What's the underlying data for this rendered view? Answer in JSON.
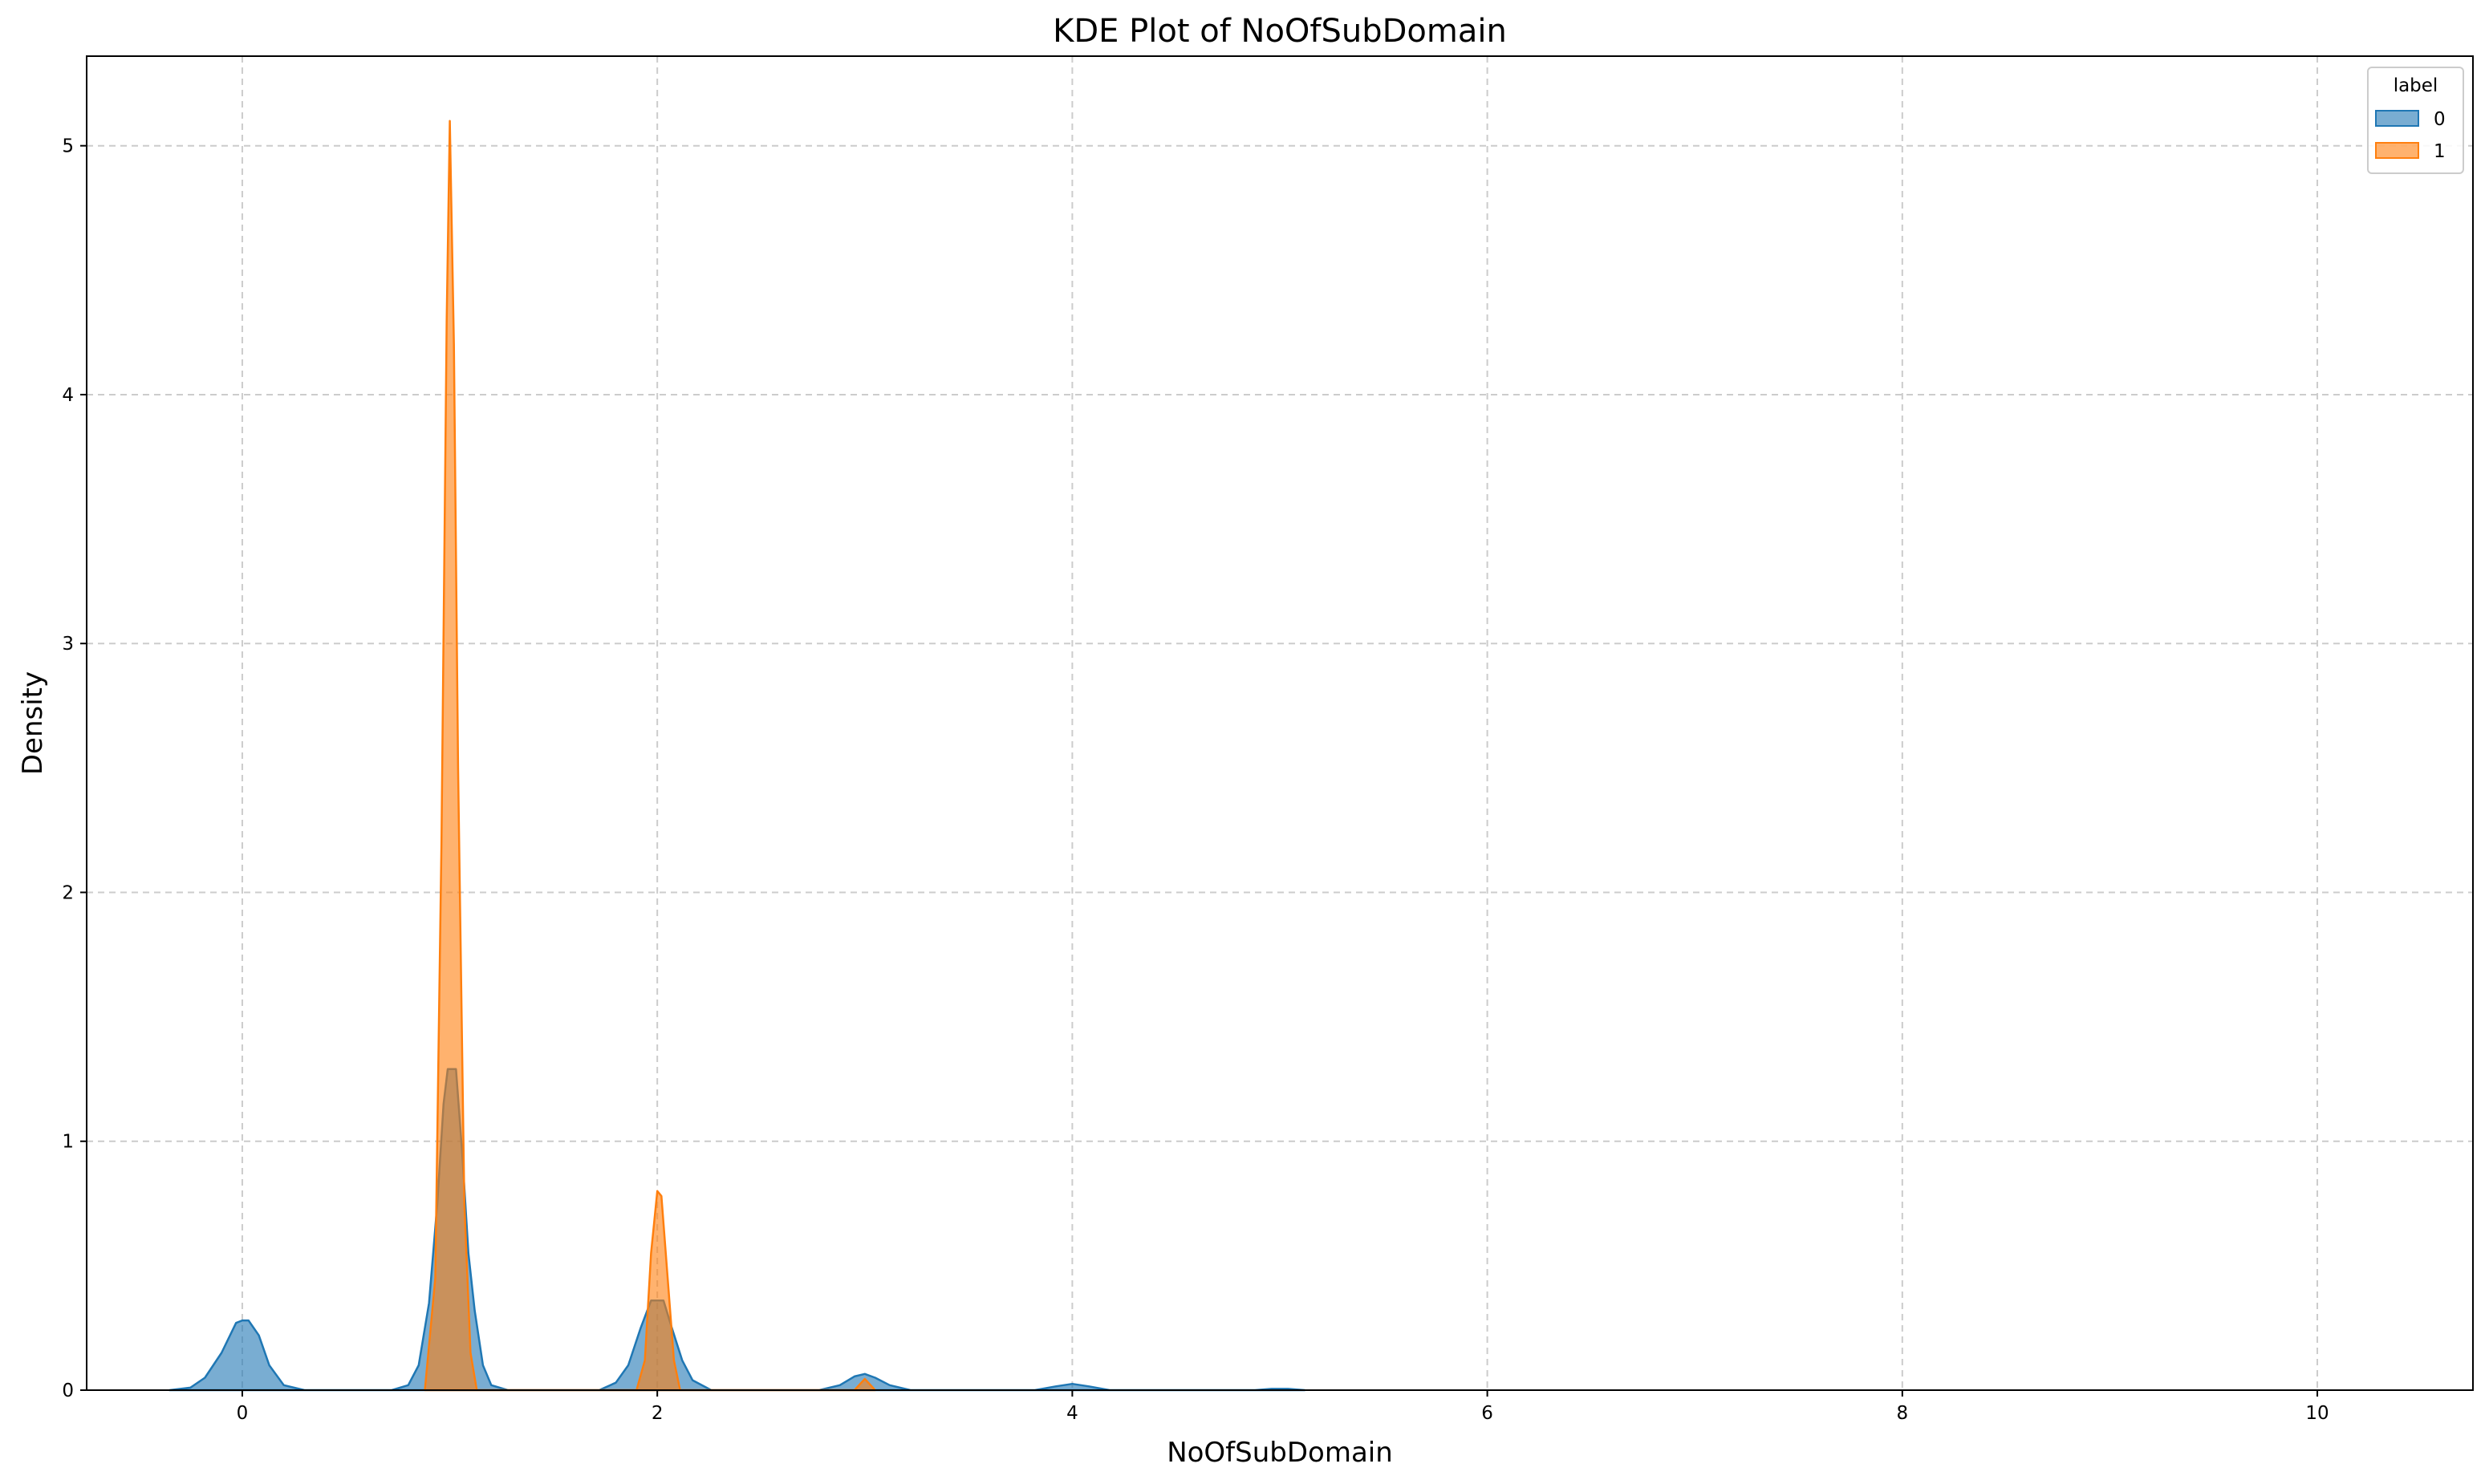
{
  "chart_data": {
    "type": "area",
    "title": "KDE Plot of NoOfSubDomain",
    "xlabel": "NoOfSubDomain",
    "ylabel": "Density",
    "xlim": [
      -0.75,
      10.75
    ],
    "ylim": [
      0,
      5.36
    ],
    "x_ticks": [
      0,
      2,
      4,
      6,
      8,
      10
    ],
    "y_ticks": [
      0,
      1,
      2,
      3,
      4,
      5
    ],
    "grid": true,
    "legend": {
      "title": "label",
      "placement": "top-right"
    },
    "series": [
      {
        "name": "0",
        "color": "#1f77b4",
        "points": [
          [
            -0.35,
            0
          ],
          [
            -0.25,
            0.01
          ],
          [
            -0.18,
            0.05
          ],
          [
            -0.1,
            0.15
          ],
          [
            -0.03,
            0.27
          ],
          [
            0,
            0.28
          ],
          [
            0.03,
            0.28
          ],
          [
            0.08,
            0.22
          ],
          [
            0.13,
            0.1
          ],
          [
            0.2,
            0.02
          ],
          [
            0.3,
            0
          ],
          [
            0.72,
            0
          ],
          [
            0.8,
            0.02
          ],
          [
            0.85,
            0.1
          ],
          [
            0.9,
            0.35
          ],
          [
            0.94,
            0.75
          ],
          [
            0.97,
            1.15
          ],
          [
            0.99,
            1.29
          ],
          [
            1.03,
            1.29
          ],
          [
            1.06,
            0.95
          ],
          [
            1.09,
            0.55
          ],
          [
            1.12,
            0.32
          ],
          [
            1.16,
            0.1
          ],
          [
            1.2,
            0.02
          ],
          [
            1.28,
            0
          ],
          [
            1.72,
            0
          ],
          [
            1.8,
            0.03
          ],
          [
            1.86,
            0.1
          ],
          [
            1.92,
            0.25
          ],
          [
            1.97,
            0.36
          ],
          [
            2.03,
            0.36
          ],
          [
            2.07,
            0.25
          ],
          [
            2.12,
            0.12
          ],
          [
            2.17,
            0.04
          ],
          [
            2.26,
            0
          ],
          [
            2.78,
            0
          ],
          [
            2.88,
            0.02
          ],
          [
            2.95,
            0.055
          ],
          [
            3.0,
            0.065
          ],
          [
            3.05,
            0.05
          ],
          [
            3.12,
            0.02
          ],
          [
            3.22,
            0
          ],
          [
            3.82,
            0
          ],
          [
            3.92,
            0.015
          ],
          [
            4.0,
            0.025
          ],
          [
            4.08,
            0.015
          ],
          [
            4.18,
            0
          ],
          [
            4.88,
            0
          ],
          [
            4.96,
            0.005
          ],
          [
            5.04,
            0.005
          ],
          [
            5.12,
            0
          ]
        ]
      },
      {
        "name": "1",
        "color": "#ff7f0e",
        "points": [
          [
            0.88,
            0
          ],
          [
            0.93,
            0.45
          ],
          [
            0.96,
            2.2
          ],
          [
            0.985,
            4.3
          ],
          [
            1.0,
            5.1
          ],
          [
            1.02,
            4.2
          ],
          [
            1.04,
            2.5
          ],
          [
            1.07,
            0.75
          ],
          [
            1.1,
            0.15
          ],
          [
            1.13,
            0
          ],
          [
            1.9,
            0
          ],
          [
            1.94,
            0.12
          ],
          [
            1.97,
            0.55
          ],
          [
            2.0,
            0.8
          ],
          [
            2.02,
            0.78
          ],
          [
            2.05,
            0.45
          ],
          [
            2.08,
            0.12
          ],
          [
            2.11,
            0
          ],
          [
            2.95,
            0
          ],
          [
            3.0,
            0.045
          ],
          [
            3.05,
            0
          ]
        ]
      }
    ]
  }
}
